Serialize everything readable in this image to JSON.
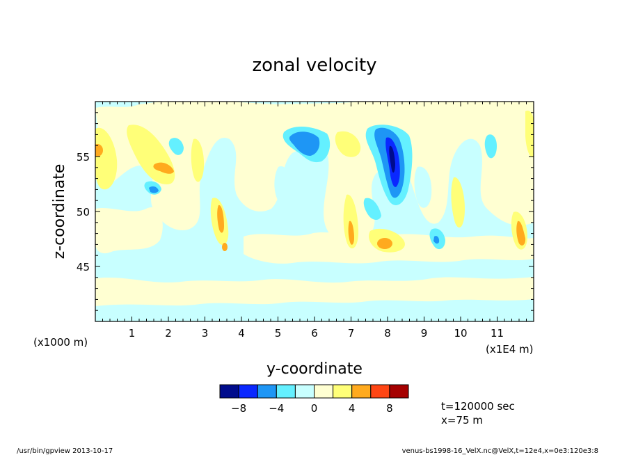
{
  "chart_data": {
    "type": "heatmap",
    "title": "zonal velocity",
    "xlabel": "y-coordinate",
    "ylabel": "z-coordinate",
    "x_unit_left": "(x1000 m)",
    "x_unit_right": "(x1E4 m)",
    "xlim": [
      0,
      12
    ],
    "ylim": [
      40,
      60
    ],
    "x_ticks": [
      1,
      2,
      3,
      4,
      5,
      6,
      7,
      8,
      9,
      10,
      11
    ],
    "y_ticks": [
      45,
      50,
      55
    ],
    "colorbar": {
      "levels": [
        -10,
        -8,
        -6,
        -4,
        -2,
        0,
        2,
        4,
        6,
        8,
        10
      ],
      "labels": [
        "-8",
        "-4",
        "0",
        "4",
        "8"
      ],
      "label_values": [
        -8,
        -4,
        0,
        4,
        8
      ],
      "colors": [
        "#000c8c",
        "#0a28ff",
        "#1e96f5",
        "#64f0ff",
        "#c8ffff",
        "#ffffd2",
        "#ffff78",
        "#ffaa1e",
        "#ff4614",
        "#a50000"
      ]
    },
    "background_color": "#c8ffff",
    "features": [
      {
        "x": 5.8,
        "z": 56.0,
        "value": -7
      },
      {
        "x": 8.2,
        "z": 54.0,
        "value": -9
      },
      {
        "x": 9.3,
        "z": 47.2,
        "value": -6
      },
      {
        "x": 1.5,
        "z": 52.0,
        "value": -5
      },
      {
        "x": 0.1,
        "z": 55.6,
        "value": 6
      },
      {
        "x": 1.9,
        "z": 54.2,
        "value": 5
      },
      {
        "x": 3.5,
        "z": 49.5,
        "value": 5
      },
      {
        "x": 6.9,
        "z": 48.2,
        "value": 5
      },
      {
        "x": 7.9,
        "z": 47.1,
        "value": 6
      },
      {
        "x": 11.6,
        "z": 47.7,
        "value": 5
      },
      {
        "x": 7.0,
        "z": 56.0,
        "value": 2
      },
      {
        "x": 5.2,
        "z": 43.5,
        "value": 1
      }
    ],
    "annotations": [
      "t=120000 sec",
      "x=75 m"
    ]
  },
  "footer": {
    "left": "/usr/bin/gpview  2013-10-17",
    "right": "venus-bs1998-16_VelX.nc@VelX,t=12e4,x=0e3:120e3:8"
  }
}
